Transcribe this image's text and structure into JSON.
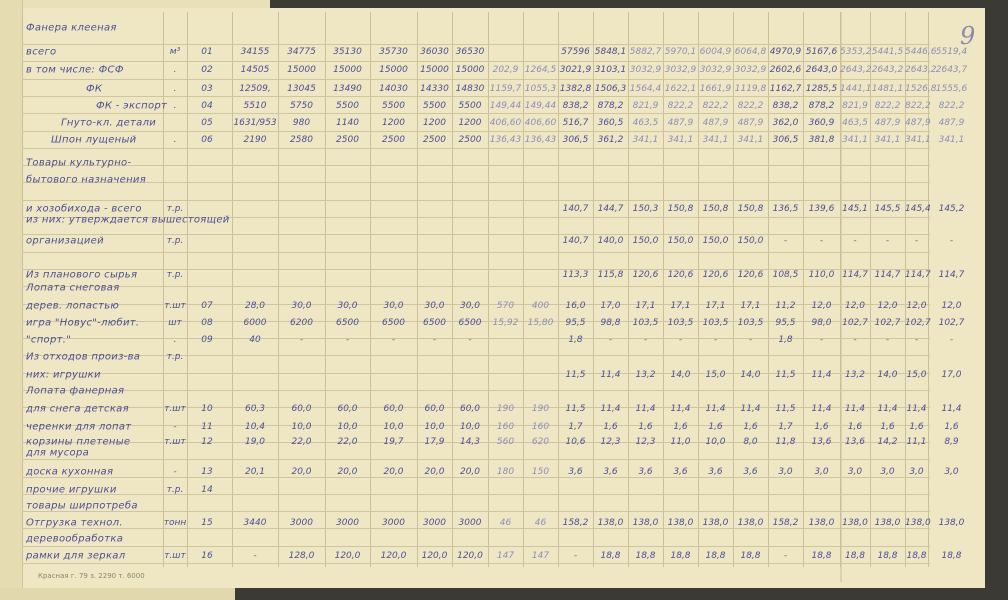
{
  "page_number": "9",
  "footer_imprint": "Красная г. 79 з. 2290 т. 6000",
  "colors": {
    "ink": "#4b4f96",
    "pencil": "#8b8fb9",
    "paper": "#efe7c4"
  },
  "rows": [
    {
      "label": "Фанера клееная",
      "unit": "",
      "code": "",
      "values": []
    },
    {
      "label": "всего",
      "unit": "м³",
      "code": "01",
      "values": [
        "34155",
        "34775",
        "35130",
        "35730",
        "36030",
        "36530",
        "",
        "",
        "57596",
        "5848,1",
        "5882,7",
        "5970,1",
        "6004,9",
        "6064,8",
        "4970,9",
        "5167,6",
        "5353,2",
        "5441,5",
        "5446,6",
        "5519,4"
      ]
    },
    {
      "label": "в том числе: ФСФ",
      "unit": ".",
      "code": "02",
      "values": [
        "14505",
        "15000",
        "15000",
        "15000",
        "15000",
        "15000",
        "202,9",
        "1264,5",
        "3021,9",
        "3103,1",
        "3032,9",
        "3032,9",
        "3032,9",
        "3032,9",
        "2602,6",
        "2643,0",
        "2643,2",
        "2643,2",
        "2643,2",
        "2643,7"
      ]
    },
    {
      "label": "ФК",
      "unit": ".",
      "code": "03",
      "values": [
        "12509,",
        "13045",
        "13490",
        "14030",
        "14330",
        "14830",
        "1159,7",
        "1055,3",
        "1382,8",
        "1506,3",
        "1564,4",
        "1622,1",
        "1661,9",
        "1119,8",
        "1162,7",
        "1285,5",
        "1441,1",
        "1481,1",
        "1526,8",
        "1555,6"
      ]
    },
    {
      "label": "ФК - экспорт",
      "unit": ".",
      "code": "04",
      "values": [
        "5510",
        "5750",
        "5500",
        "5500",
        "5500",
        "5500",
        "149,44",
        "149,44",
        "838,2",
        "878,2",
        "821,9",
        "822,2",
        "822,2",
        "822,2",
        "838,2",
        "878,2",
        "821,9",
        "822,2",
        "822,2",
        "822,2"
      ]
    },
    {
      "label": "Гнуто-кл. детали",
      "unit": "",
      "code": "05",
      "values": [
        "1631/953",
        "980",
        "1140",
        "1200",
        "1200",
        "1200",
        "406,60",
        "406,60",
        "516,7",
        "360,5",
        "463,5",
        "487,9",
        "487,9",
        "487,9",
        "362,0",
        "360,9",
        "463,5",
        "487,9",
        "487,9",
        "487,9"
      ]
    },
    {
      "label": "Шпон лущеный",
      "unit": ".",
      "code": "06",
      "values": [
        "2190",
        "2580",
        "2500",
        "2500",
        "2500",
        "2500",
        "136,43",
        "136,43",
        "306,5",
        "361,2",
        "341,1",
        "341,1",
        "341,1",
        "341,1",
        "306,5",
        "381,8",
        "341,1",
        "341,1",
        "341,1",
        "341,1"
      ]
    },
    {
      "label": "Товары культурно-",
      "unit": "",
      "code": "",
      "values": []
    },
    {
      "label": "бытового назначения",
      "unit": "",
      "code": "",
      "values": []
    },
    {
      "label": "и хозобихода - всего",
      "unit": "т.р.",
      "code": "",
      "values": [
        "",
        "",
        "",
        "",
        "",
        "",
        "",
        "",
        "140,7",
        "144,7",
        "150,3",
        "150,8",
        "150,8",
        "150,8",
        "136,5",
        "139,6",
        "145,1",
        "145,5",
        "145,4",
        "145,2"
      ]
    },
    {
      "label": "из них: утверждается вышестоящей",
      "unit": "",
      "code": "",
      "values": []
    },
    {
      "label": "организацией",
      "unit": "т.р.",
      "code": "",
      "values": [
        "",
        "",
        "",
        "",
        "",
        "",
        "",
        "",
        "140,7",
        "140,0",
        "150,0",
        "150,0",
        "150,0",
        "150,0",
        "-",
        "-",
        "-",
        "-",
        "-",
        "-"
      ]
    },
    {
      "label": "Из планового сырья",
      "unit": "т.р.",
      "code": "",
      "values": [
        "",
        "",
        "",
        "",
        "",
        "",
        "",
        "",
        "113,3",
        "115,8",
        "120,6",
        "120,6",
        "120,6",
        "120,6",
        "108,5",
        "110,0",
        "114,7",
        "114,7",
        "114,7",
        "114,7"
      ]
    },
    {
      "label": "Лопата снеговая",
      "unit": "",
      "code": "",
      "values": []
    },
    {
      "label": "дерев. лопастью",
      "unit": "т.шт",
      "code": "07",
      "values": [
        "28,0",
        "30,0",
        "30,0",
        "30,0",
        "30,0",
        "30,0",
        "570",
        "400",
        "16,0",
        "17,0",
        "17,1",
        "17,1",
        "17,1",
        "17,1",
        "11,2",
        "12,0",
        "12,0",
        "12,0",
        "12,0",
        "12,0"
      ]
    },
    {
      "label": "игра \"Новус\"-любит.",
      "unit": "шт",
      "code": "08",
      "values": [
        "6000",
        "6200",
        "6500",
        "6500",
        "6500",
        "6500",
        "15,92",
        "15,80",
        "95,5",
        "98,8",
        "103,5",
        "103,5",
        "103,5",
        "103,5",
        "95,5",
        "98,0",
        "102,7",
        "102,7",
        "102,7",
        "102,7"
      ]
    },
    {
      "label": "\"спорт.\"",
      "unit": ".",
      "code": "09",
      "values": [
        "40",
        "-",
        "-",
        "-",
        "-",
        "-",
        "",
        "",
        "1,8",
        "-",
        "-",
        "-",
        "-",
        "-",
        "1,8",
        "-",
        "-",
        "-",
        "-",
        "-"
      ]
    },
    {
      "label": "Из отходов произ-ва",
      "unit": "т.р.",
      "code": "",
      "values": []
    },
    {
      "label": "них: игрушки",
      "unit": "",
      "code": "",
      "values": [
        "",
        "",
        "",
        "",
        "",
        "",
        "",
        "",
        "11,5",
        "11,4",
        "13,2",
        "14,0",
        "15,0",
        "14,0",
        "11,5",
        "11,4",
        "13,2",
        "14,0",
        "15,0",
        "17,0"
      ]
    },
    {
      "label": "Лопата фанерная",
      "unit": "",
      "code": "",
      "values": []
    },
    {
      "label": "для снега детская",
      "unit": "т.шт",
      "code": "10",
      "values": [
        "60,3",
        "60,0",
        "60,0",
        "60,0",
        "60,0",
        "60,0",
        "190",
        "190",
        "11,5",
        "11,4",
        "11,4",
        "11,4",
        "11,4",
        "11,4",
        "11,5",
        "11,4",
        "11,4",
        "11,4",
        "11,4",
        "11,4"
      ]
    },
    {
      "label": "черенки для лопат",
      "unit": "-",
      "code": "11",
      "values": [
        "10,4",
        "10,0",
        "10,0",
        "10,0",
        "10,0",
        "10,0",
        "160",
        "160",
        "1,7",
        "1,6",
        "1,6",
        "1,6",
        "1,6",
        "1,6",
        "1,7",
        "1,6",
        "1,6",
        "1,6",
        "1,6",
        "1,6"
      ]
    },
    {
      "label": "корзины плетеные",
      "unit": "т.шт",
      "code": "12",
      "values": [
        "19,0",
        "22,0",
        "22,0",
        "19,7",
        "17,9",
        "14,3",
        "560",
        "620",
        "10,6",
        "12,3",
        "12,3",
        "11,0",
        "10,0",
        "8,0",
        "11,8",
        "13,6",
        "13,6",
        "14,2",
        "11,1",
        "8,9"
      ]
    },
    {
      "label": "для мусора",
      "unit": "",
      "code": "",
      "values": []
    },
    {
      "label": "доска кухонная",
      "unit": "-",
      "code": "13",
      "values": [
        "20,1",
        "20,0",
        "20,0",
        "20,0",
        "20,0",
        "20,0",
        "180",
        "150",
        "3,6",
        "3,6",
        "3,6",
        "3,6",
        "3,6",
        "3,6",
        "3,0",
        "3,0",
        "3,0",
        "3,0",
        "3,0",
        "3,0"
      ]
    },
    {
      "label": "прочие игрушки",
      "unit": "т.р.",
      "code": "14",
      "values": []
    },
    {
      "label": "товары ширпотреба",
      "unit": "",
      "code": "",
      "values": []
    },
    {
      "label": "Отгрузка технол.",
      "unit": "тонн",
      "code": "15",
      "values": [
        "3440",
        "3000",
        "3000",
        "3000",
        "3000",
        "3000",
        "46",
        "46",
        "158,2",
        "138,0",
        "138,0",
        "138,0",
        "138,0",
        "138,0",
        "158,2",
        "138,0",
        "138,0",
        "138,0",
        "138,0",
        "138,0"
      ]
    },
    {
      "label": "деревообработка",
      "unit": "",
      "code": "",
      "values": []
    },
    {
      "label": "рамки для зеркал",
      "unit": "т.шт",
      "code": "16",
      "values": [
        "-",
        "128,0",
        "120,0",
        "120,0",
        "120,0",
        "120,0",
        "147",
        "147",
        "-",
        "18,8",
        "18,8",
        "18,8",
        "18,8",
        "18,8",
        "-",
        "18,8",
        "18,8",
        "18,8",
        "18,8",
        "18,8"
      ]
    }
  ]
}
